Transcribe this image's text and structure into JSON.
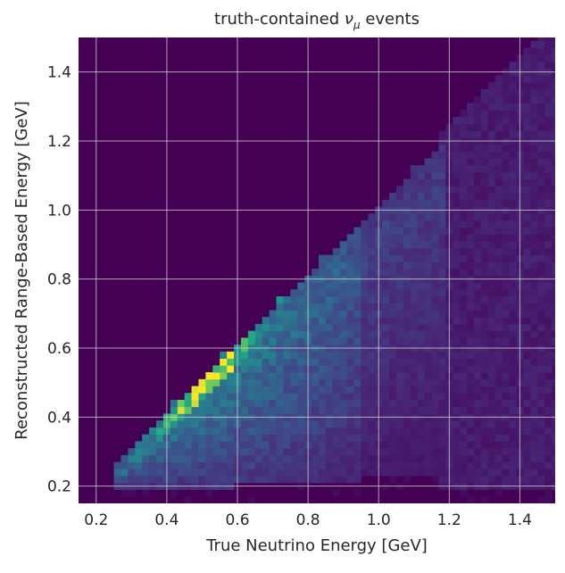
{
  "chart_data": {
    "type": "heatmap",
    "title_prefix": "truth-contained ",
    "title_symbol": "ν",
    "title_subscript": "μ",
    "title_suffix": " events",
    "xlabel": "True Neutrino Energy [GeV]",
    "ylabel": "Reconstructed Range-Based Energy [GeV]",
    "xlim": [
      0.15,
      1.5
    ],
    "ylim": [
      0.15,
      1.5
    ],
    "xticks": [
      "0.2",
      "0.4",
      "0.6",
      "0.8",
      "1.0",
      "1.2",
      "1.4"
    ],
    "yticks": [
      "0.2",
      "0.4",
      "0.6",
      "0.8",
      "1.0",
      "1.2",
      "1.4"
    ],
    "grid": true,
    "colormap": "viridis",
    "bin_width_gev": 0.02,
    "background_color": "#440154",
    "hotspot": {
      "x": 0.51,
      "y": 0.49
    },
    "band": {
      "lower_y_start": 0.2,
      "lower_y_end": 0.24,
      "main_diagonal_offset": -0.02,
      "upper_edge_start_x": 0.28,
      "upper_edge_end_x": 1.18,
      "upper_edge_end_y": 1.18
    }
  }
}
